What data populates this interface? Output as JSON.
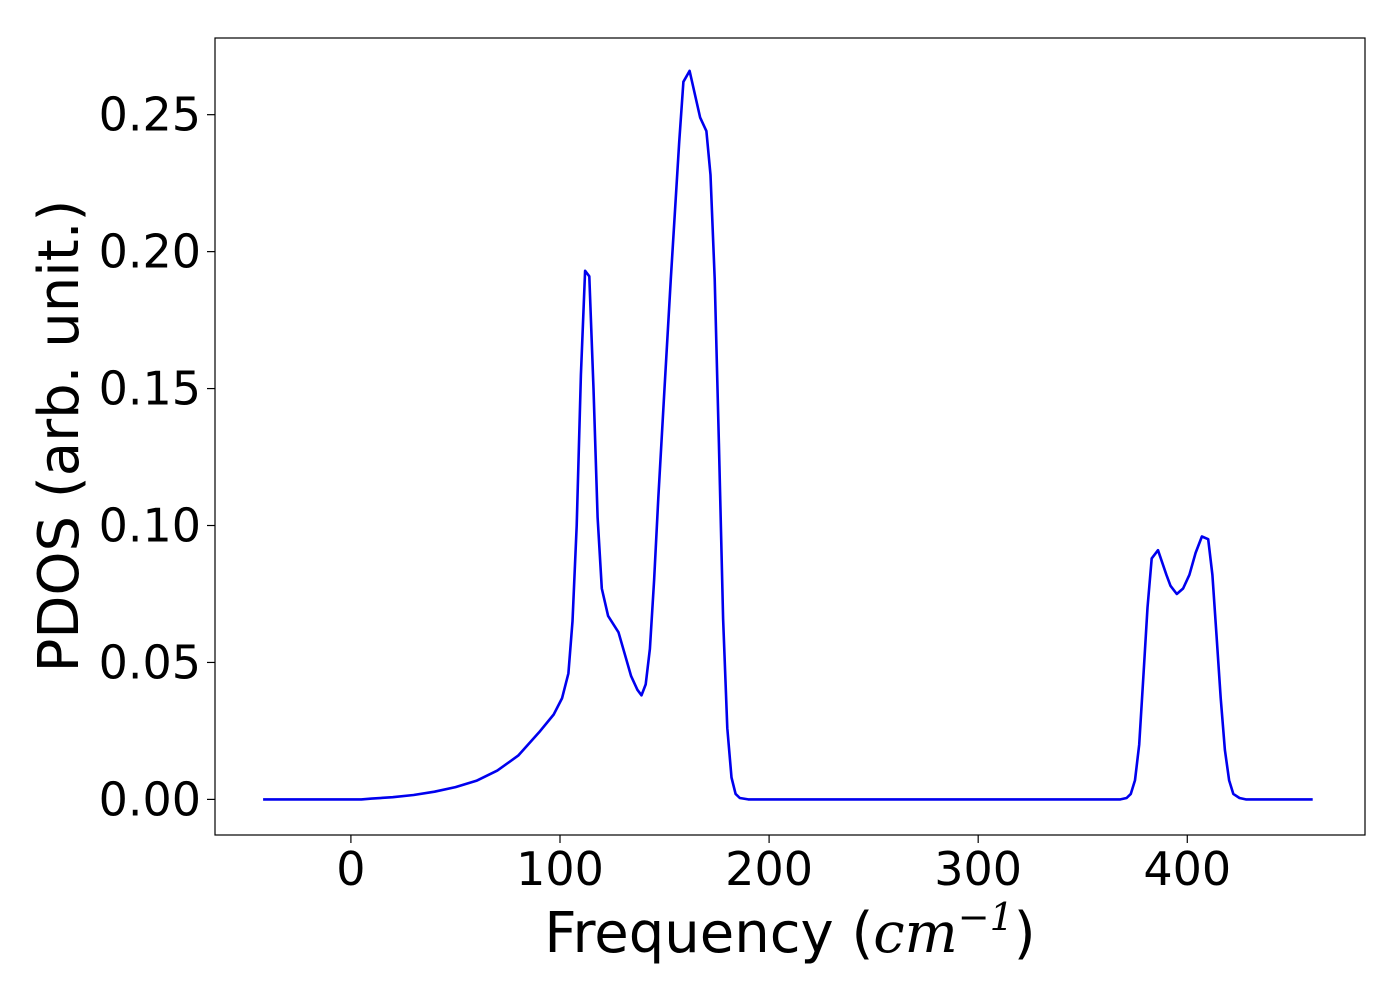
{
  "chart_data": {
    "type": "line",
    "xlabel": "Frequency (",
    "xlabel_math": "cm",
    "xlabel_sup": "−1",
    "xlabel_close": ")",
    "ylabel": "PDOS (arb. unit.)",
    "xlim": [
      -65,
      485
    ],
    "ylim": [
      -0.013,
      0.278
    ],
    "xticks": [
      {
        "value": 0,
        "label": "0"
      },
      {
        "value": 100,
        "label": "100"
      },
      {
        "value": 200,
        "label": "200"
      },
      {
        "value": 300,
        "label": "300"
      },
      {
        "value": 400,
        "label": "400"
      }
    ],
    "yticks": [
      {
        "value": 0.0,
        "label": "0.00"
      },
      {
        "value": 0.05,
        "label": "0.05"
      },
      {
        "value": 0.1,
        "label": "0.10"
      },
      {
        "value": 0.15,
        "label": "0.15"
      },
      {
        "value": 0.2,
        "label": "0.20"
      },
      {
        "value": 0.25,
        "label": "0.25"
      }
    ],
    "grid": false,
    "legend": "none",
    "series": [
      {
        "color": "#0000ee",
        "points": [
          [
            -42,
            0.0
          ],
          [
            0,
            0.0
          ],
          [
            5,
            0.0
          ],
          [
            10,
            0.0003
          ],
          [
            20,
            0.0008
          ],
          [
            30,
            0.0016
          ],
          [
            40,
            0.0028
          ],
          [
            50,
            0.0045
          ],
          [
            60,
            0.0068
          ],
          [
            70,
            0.0105
          ],
          [
            80,
            0.016
          ],
          [
            90,
            0.0245
          ],
          [
            97,
            0.031
          ],
          [
            101,
            0.037
          ],
          [
            104,
            0.046
          ],
          [
            106,
            0.065
          ],
          [
            108,
            0.1
          ],
          [
            110,
            0.155
          ],
          [
            112,
            0.193
          ],
          [
            114,
            0.191
          ],
          [
            116,
            0.15
          ],
          [
            118,
            0.103
          ],
          [
            120,
            0.077
          ],
          [
            123,
            0.067
          ],
          [
            128,
            0.061
          ],
          [
            131,
            0.053
          ],
          [
            134,
            0.045
          ],
          [
            137,
            0.04
          ],
          [
            139,
            0.038
          ],
          [
            141,
            0.042
          ],
          [
            143,
            0.055
          ],
          [
            145,
            0.08
          ],
          [
            147,
            0.11
          ],
          [
            150,
            0.15
          ],
          [
            153,
            0.19
          ],
          [
            157,
            0.24
          ],
          [
            159,
            0.262
          ],
          [
            162,
            0.266
          ],
          [
            167,
            0.249
          ],
          [
            170,
            0.244
          ],
          [
            172,
            0.228
          ],
          [
            174,
            0.19
          ],
          [
            176,
            0.13
          ],
          [
            178,
            0.066
          ],
          [
            180,
            0.026
          ],
          [
            182,
            0.008
          ],
          [
            184,
            0.002
          ],
          [
            186,
            0.0005
          ],
          [
            190,
            0.0
          ],
          [
            300,
            0.0
          ],
          [
            368,
            0.0
          ],
          [
            371,
            0.0005
          ],
          [
            373,
            0.002
          ],
          [
            375,
            0.007
          ],
          [
            377,
            0.02
          ],
          [
            379,
            0.045
          ],
          [
            381,
            0.07
          ],
          [
            383,
            0.088
          ],
          [
            386,
            0.091
          ],
          [
            390,
            0.082
          ],
          [
            392,
            0.078
          ],
          [
            395,
            0.075
          ],
          [
            398,
            0.077
          ],
          [
            401,
            0.082
          ],
          [
            404,
            0.09
          ],
          [
            407,
            0.096
          ],
          [
            410,
            0.095
          ],
          [
            412,
            0.082
          ],
          [
            414,
            0.06
          ],
          [
            416,
            0.037
          ],
          [
            418,
            0.018
          ],
          [
            420,
            0.007
          ],
          [
            422,
            0.002
          ],
          [
            425,
            0.0005
          ],
          [
            428,
            0.0
          ],
          [
            460,
            0.0
          ]
        ]
      }
    ]
  }
}
